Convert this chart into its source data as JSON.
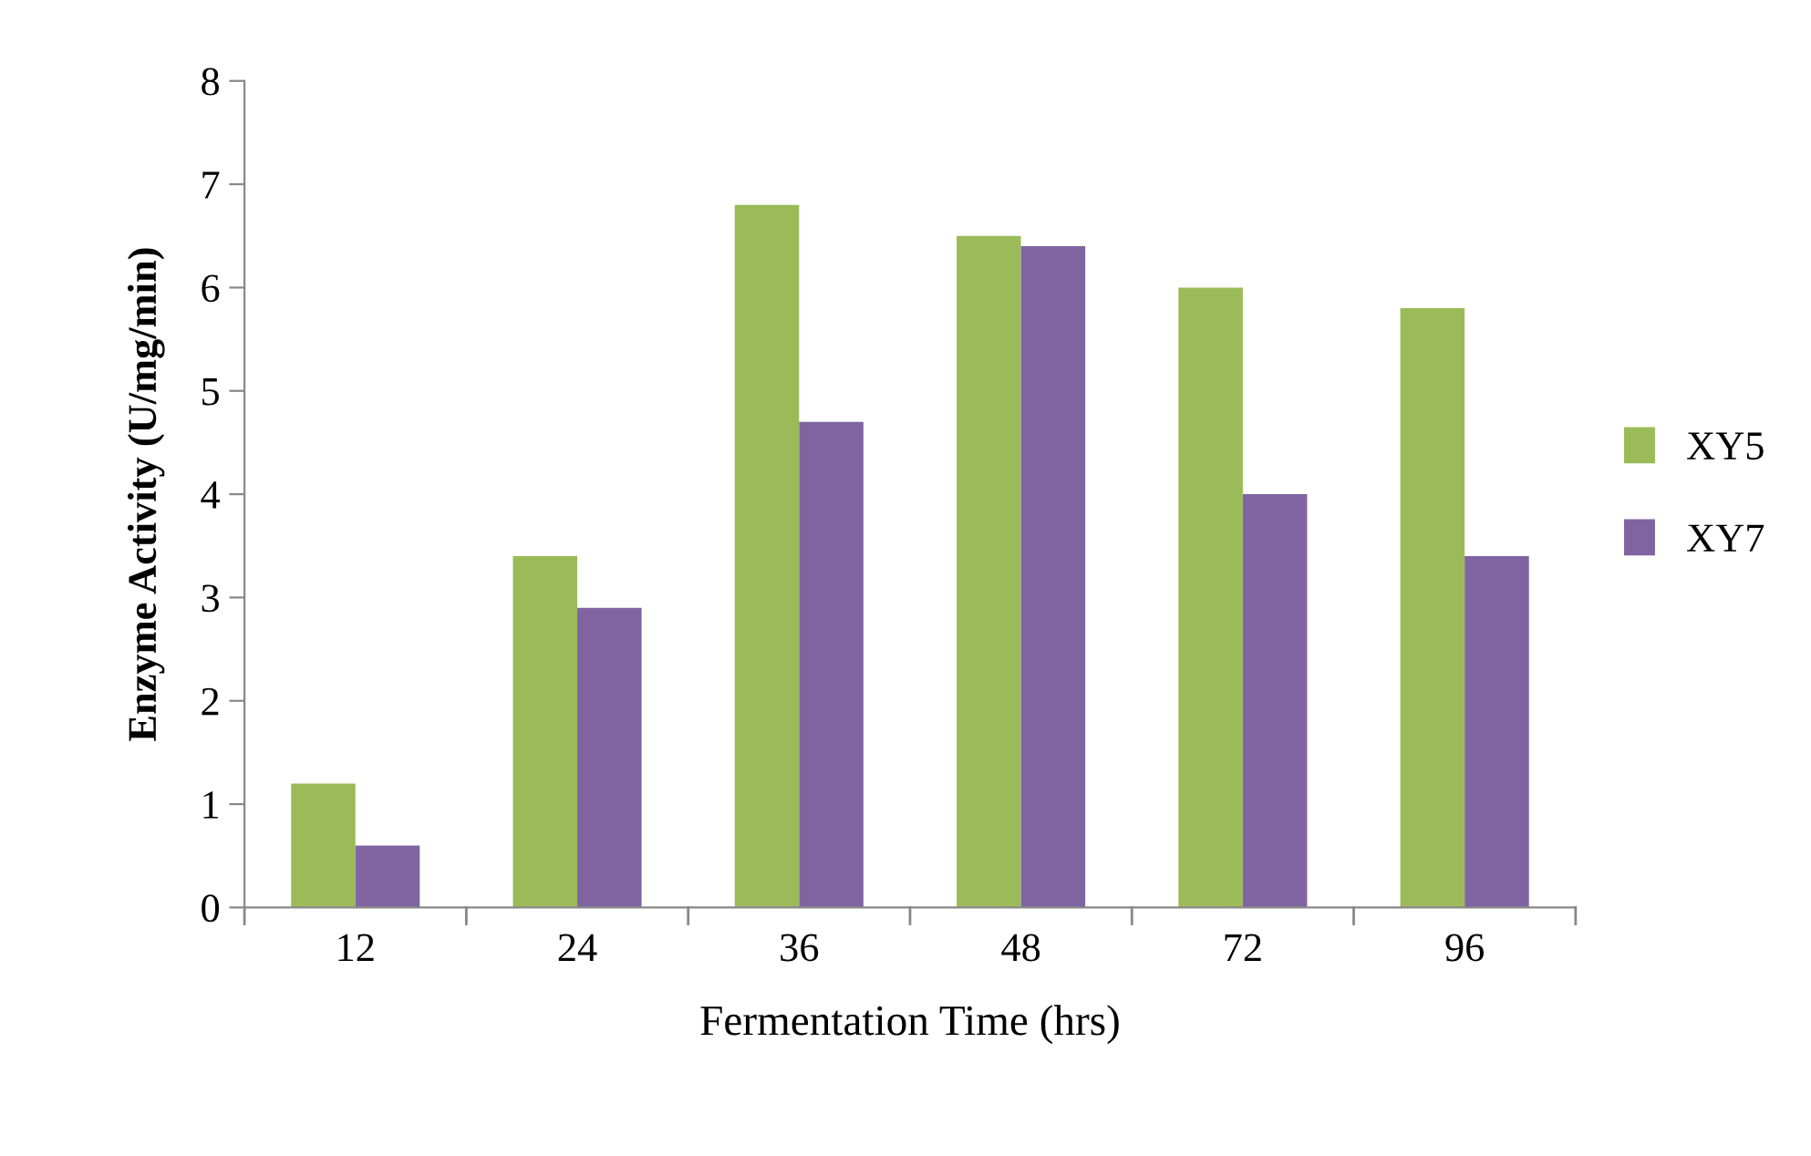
{
  "chart_data": {
    "type": "bar",
    "xlabel": "Fermentation Time (hrs)",
    "ylabel": "Enzyme Activity (U/mg/min)",
    "categories": [
      "12",
      "24",
      "36",
      "48",
      "72",
      "96"
    ],
    "series": [
      {
        "name": "XY5",
        "color": "#9bbb59",
        "values": [
          1.2,
          3.4,
          6.8,
          6.5,
          6.0,
          5.8
        ]
      },
      {
        "name": "XY7",
        "color": "#8064a2",
        "values": [
          0.6,
          2.9,
          4.7,
          6.4,
          4.0,
          3.4
        ]
      }
    ],
    "ylim": [
      0,
      8
    ],
    "yticks": [
      0,
      1,
      2,
      3,
      4,
      5,
      6,
      7,
      8
    ],
    "grid": false,
    "legend": "right"
  }
}
